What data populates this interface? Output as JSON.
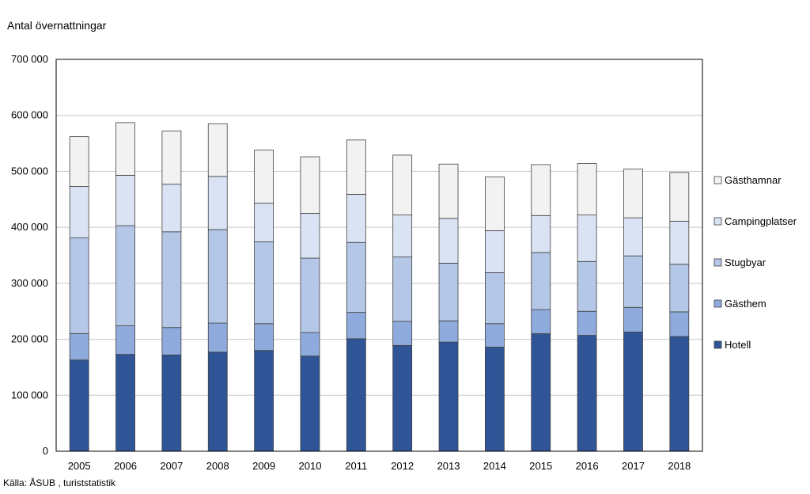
{
  "chart_data": {
    "type": "bar",
    "stacked": true,
    "ylabel": "Antal övernattningar",
    "source": "Källa: ÅSUB , turiststatistik",
    "ylim": [
      0,
      700000
    ],
    "yticks": [
      0,
      100000,
      200000,
      300000,
      400000,
      500000,
      600000,
      700000
    ],
    "ytick_labels": [
      "0",
      "100 000",
      "200 000",
      "300 000",
      "400 000",
      "500 000",
      "600 000",
      "700 000"
    ],
    "grid": true,
    "legend_position": "right",
    "categories": [
      "2005",
      "2006",
      "2007",
      "2008",
      "2009",
      "2010",
      "2011",
      "2012",
      "2013",
      "2014",
      "2015",
      "2016",
      "2017",
      "2018"
    ],
    "series": [
      {
        "name": "Hotell",
        "color": "#2f5597",
        "values": [
          163000,
          173000,
          172000,
          177000,
          180000,
          170000,
          201000,
          189000,
          195000,
          186000,
          210000,
          207000,
          213000,
          205000
        ]
      },
      {
        "name": "Gästhem",
        "color": "#8faadc",
        "values": [
          47000,
          51000,
          49000,
          52000,
          48000,
          42000,
          47000,
          43000,
          38000,
          42000,
          43000,
          43000,
          44000,
          44000
        ]
      },
      {
        "name": "Stugbyar",
        "color": "#b4c7e7",
        "values": [
          171000,
          179000,
          171000,
          167000,
          146000,
          133000,
          125000,
          115000,
          103000,
          91000,
          102000,
          89000,
          92000,
          85000
        ]
      },
      {
        "name": "Campingplatser",
        "color": "#dae3f3",
        "values": [
          92000,
          90000,
          85000,
          95000,
          69000,
          80000,
          86000,
          75000,
          80000,
          75000,
          66000,
          83000,
          68000,
          77000
        ]
      },
      {
        "name": "Gästhamnar",
        "color": "#f2f2f2",
        "values": [
          89000,
          94000,
          95000,
          94000,
          95000,
          101000,
          97000,
          107000,
          97000,
          96000,
          91000,
          92000,
          87000,
          87000
        ]
      }
    ],
    "legend_order": [
      "Gästhamnar",
      "Campingplatser",
      "Stugbyar",
      "Gästhem",
      "Hotell"
    ]
  }
}
